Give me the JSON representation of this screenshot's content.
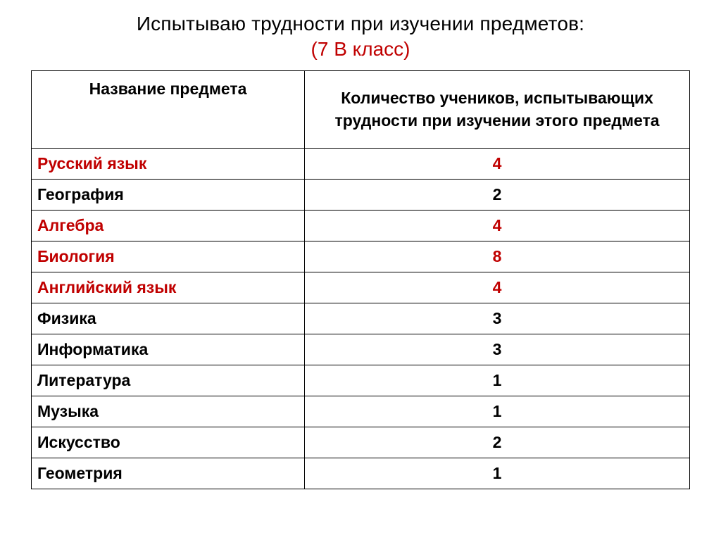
{
  "title": {
    "line1": "Испытываю трудности при изучении предметов:",
    "line2": "(7 В класс)",
    "color_main": "#000000",
    "color_sub": "#c00000",
    "fontsize": 28
  },
  "table": {
    "type": "table",
    "border_color": "#000000",
    "background_color": "#ffffff",
    "header_fontsize": 23,
    "cell_fontsize": 23,
    "font_weight": "700",
    "columns": [
      {
        "label": "Название предмета",
        "width_pct": 41.5,
        "align": "left"
      },
      {
        "label": "Количество учеников, испытывающих трудности при изучении этого предмета",
        "width_pct": 58.5,
        "align": "center"
      }
    ],
    "highlight_color": "#c00000",
    "normal_color": "#000000",
    "rows": [
      {
        "subject": "Русский язык",
        "count": "4",
        "highlight": true
      },
      {
        "subject": "География",
        "count": "2",
        "highlight": false
      },
      {
        "subject": "Алгебра",
        "count": "4",
        "highlight": true
      },
      {
        "subject": "Биология",
        "count": "8",
        "highlight": true
      },
      {
        "subject": "Английский язык",
        "count": "4",
        "highlight": true
      },
      {
        "subject": "Физика",
        "count": "3",
        "highlight": false
      },
      {
        "subject": "Информатика",
        "count": "3",
        "highlight": false
      },
      {
        "subject": "Литература",
        "count": "1",
        "highlight": false
      },
      {
        "subject": "Музыка",
        "count": "1",
        "highlight": false
      },
      {
        "subject": "Искусство",
        "count": "2",
        "highlight": false
      },
      {
        "subject": "Геометрия",
        "count": "1",
        "highlight": false
      }
    ]
  }
}
